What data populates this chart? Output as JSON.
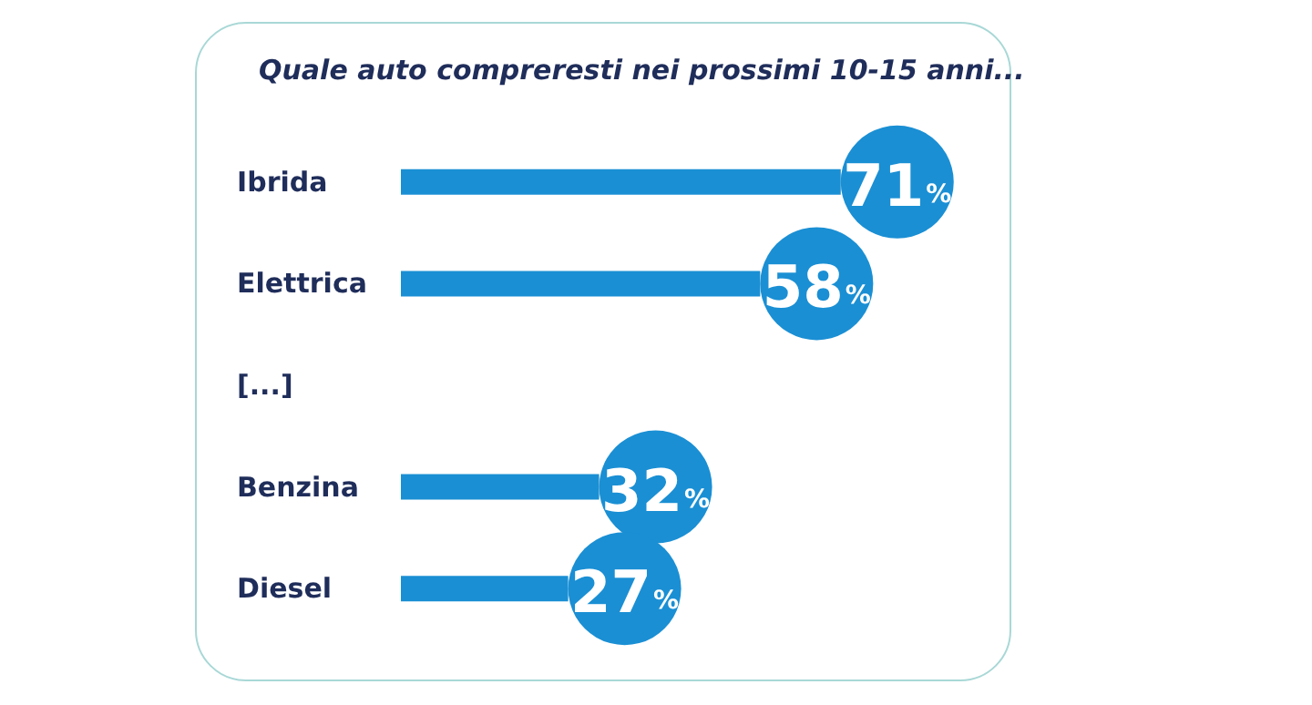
{
  "chart_data": {
    "type": "bar",
    "orientation": "horizontal",
    "title": "Quale auto compreresti nei prossimi 10-15 anni...",
    "categories": [
      "Ibrida",
      "Elettrica",
      "[...]",
      "Benzina",
      "Diesel"
    ],
    "values": [
      71,
      58,
      null,
      32,
      27
    ],
    "value_labels": [
      "71%",
      "58%",
      null,
      "32%",
      "27%"
    ],
    "color": "#1a8fd4"
  }
}
